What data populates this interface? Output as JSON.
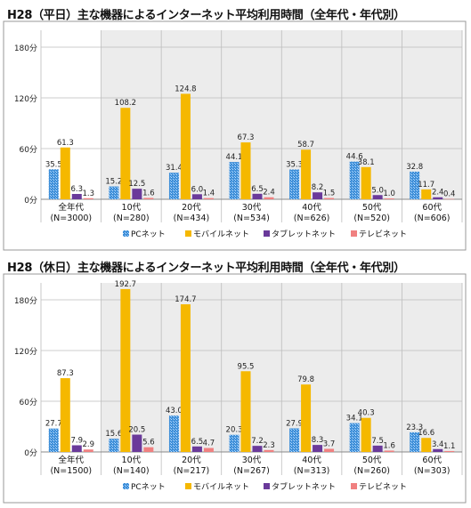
{
  "chart_data": [
    {
      "type": "bar",
      "title": "H28（平日）主な機器によるインターネット平均利用時間（全年代・年代別）",
      "categories": [
        "全年代",
        "10代",
        "20代",
        "30代",
        "40代",
        "50代",
        "60代"
      ],
      "category_sublabels": [
        "(N=3000)",
        "(N=280)",
        "(N=434)",
        "(N=534)",
        "(N=626)",
        "(N=520)",
        "(N=606)"
      ],
      "yticks": [
        "0分",
        "60分",
        "120分",
        "180分"
      ],
      "ylim": [
        0,
        200
      ],
      "legend_position": "bottom",
      "series": [
        {
          "name": "PCネット",
          "color": "#4a9be0",
          "values": [
            35.5,
            15.2,
            31.4,
            44.1,
            35.3,
            44.6,
            32.8
          ]
        },
        {
          "name": "モバイルネット",
          "color": "#f5b800",
          "values": [
            61.3,
            108.2,
            124.8,
            67.3,
            58.7,
            38.1,
            11.7
          ]
        },
        {
          "name": "タブレットネット",
          "color": "#6a3a9a",
          "values": [
            6.3,
            12.5,
            6.0,
            6.5,
            8.2,
            5.0,
            2.4
          ]
        },
        {
          "name": "テレビネット",
          "color": "#f08080",
          "values": [
            1.3,
            1.6,
            1.4,
            2.4,
            1.5,
            1.0,
            0.4
          ]
        }
      ]
    },
    {
      "type": "bar",
      "title": "H28（休日）主な機器によるインターネット平均利用時間（全年代・年代別）",
      "categories": [
        "全年代",
        "10代",
        "20代",
        "30代",
        "40代",
        "50代",
        "60代"
      ],
      "category_sublabels": [
        "(N=1500)",
        "(N=140)",
        "(N=217)",
        "(N=267)",
        "(N=313)",
        "(N=260)",
        "(N=303)"
      ],
      "yticks": [
        "0分",
        "60分",
        "120分",
        "180分"
      ],
      "ylim": [
        0,
        200
      ],
      "legend_position": "bottom",
      "series": [
        {
          "name": "PCネット",
          "color": "#4a9be0",
          "values": [
            27.7,
            15.6,
            43.0,
            20.3,
            27.9,
            34.1,
            23.3
          ]
        },
        {
          "name": "モバイルネット",
          "color": "#f5b800",
          "values": [
            87.3,
            192.7,
            174.7,
            95.5,
            79.8,
            40.3,
            16.6
          ]
        },
        {
          "name": "タブレットネット",
          "color": "#6a3a9a",
          "values": [
            7.9,
            20.5,
            6.5,
            7.2,
            8.3,
            7.5,
            3.4
          ]
        },
        {
          "name": "テレビネット",
          "color": "#f08080",
          "values": [
            2.9,
            5.6,
            4.7,
            2.3,
            3.7,
            1.6,
            1.1
          ]
        }
      ]
    }
  ]
}
